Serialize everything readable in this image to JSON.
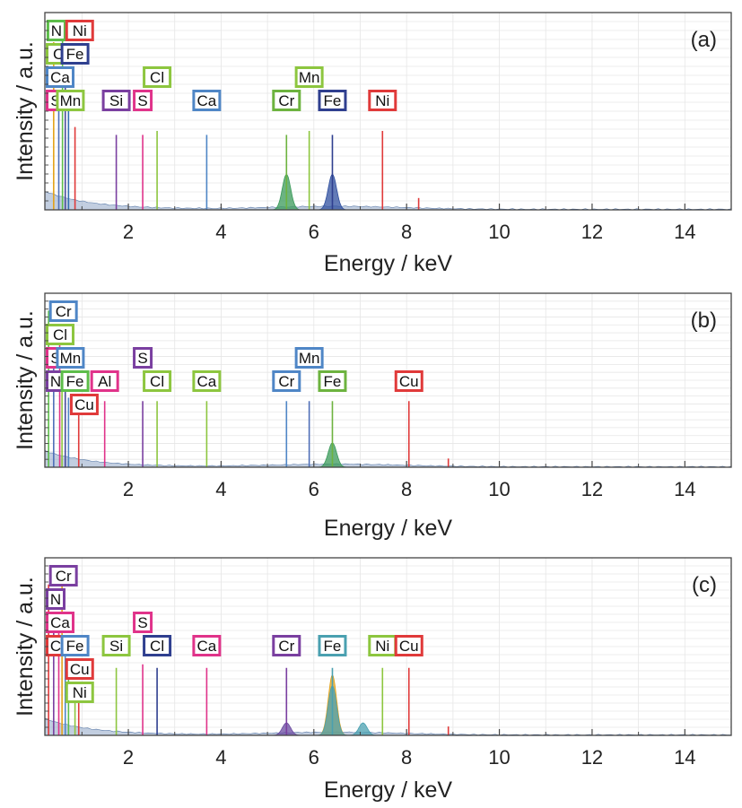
{
  "chart_data": [
    {
      "type": "line",
      "panel_label": "(a)",
      "xlabel": "Energy / keV",
      "ylabel": "Intensity / a.u.",
      "xlim": [
        0.2,
        15
      ],
      "xticks": [
        2,
        4,
        6,
        8,
        10,
        12,
        14
      ],
      "grid": true,
      "peaks": [
        {
          "x": 0.39,
          "y": 0.85,
          "color": "#e3a21a"
        },
        {
          "x": 0.5,
          "y": 0.55,
          "color": "#4f6fb8"
        },
        {
          "x": 0.58,
          "y": 0.93,
          "color": "#5dbd4a"
        },
        {
          "x": 0.64,
          "y": 0.62,
          "color": "#4a4a9a"
        },
        {
          "x": 0.71,
          "y": 0.55,
          "color": "#2f6db0"
        },
        {
          "x": 0.85,
          "y": 0.42,
          "color": "#e03a3a"
        },
        {
          "x": 1.74,
          "y": 0.38,
          "color": "#7a3fa0"
        },
        {
          "x": 2.31,
          "y": 0.38,
          "color": "#e0338a"
        },
        {
          "x": 2.62,
          "y": 0.4,
          "color": "#8dc63f"
        },
        {
          "x": 3.69,
          "y": 0.38,
          "color": "#4f86c6"
        },
        {
          "x": 5.41,
          "y": 0.38,
          "color": "#6db33f"
        },
        {
          "x": 5.9,
          "y": 0.4,
          "color": "#8dc63f"
        },
        {
          "x": 6.4,
          "y": 0.38,
          "color": "#2f3f8f"
        },
        {
          "x": 7.48,
          "y": 0.4,
          "color": "#e03a3a"
        },
        {
          "x": 8.26,
          "y": 0.06,
          "color": "#e03a3a"
        }
      ],
      "humps": [
        {
          "x": 5.41,
          "y": 0.18,
          "color": "#3a9a5a"
        },
        {
          "x": 6.4,
          "y": 0.18,
          "color": "#2f4f9f"
        }
      ],
      "element_labels": [
        {
          "text": "N",
          "x": 0.45,
          "row": 1,
          "color": "#5dbd4a"
        },
        {
          "text": "Ni",
          "x": 0.95,
          "row": 1,
          "color": "#e03a3a"
        },
        {
          "text": "Cl",
          "x": 0.35,
          "row": 2,
          "color": "#8dc63f"
        },
        {
          "text": "Fe",
          "x": 0.85,
          "row": 2,
          "color": "#2f3f8f"
        },
        {
          "text": "Ca",
          "x": 0.5,
          "row": 3,
          "color": "#4f86c6"
        },
        {
          "text": "Cl",
          "x": 2.62,
          "row": 3,
          "color": "#8dc63f"
        },
        {
          "text": "Mn",
          "x": 5.9,
          "row": 3,
          "color": "#8dc63f"
        },
        {
          "text": "S",
          "x": 0.27,
          "row": 4,
          "color": "#e0338a"
        },
        {
          "text": "Mn",
          "x": 0.75,
          "row": 4,
          "color": "#8dc63f"
        },
        {
          "text": "Si",
          "x": 1.74,
          "row": 4,
          "color": "#7a3fa0"
        },
        {
          "text": "S",
          "x": 2.31,
          "row": 4,
          "color": "#e0338a"
        },
        {
          "text": "Ca",
          "x": 3.69,
          "row": 4,
          "color": "#4f86c6"
        },
        {
          "text": "Cr",
          "x": 5.41,
          "row": 4,
          "color": "#6db33f"
        },
        {
          "text": "Fe",
          "x": 6.4,
          "row": 4,
          "color": "#2f3f8f"
        },
        {
          "text": "Ni",
          "x": 7.48,
          "row": 4,
          "color": "#e03a3a"
        }
      ]
    },
    {
      "type": "line",
      "panel_label": "(b)",
      "xlabel": "Energy / keV",
      "ylabel": "Intensity / a.u.",
      "xlim": [
        0.2,
        15
      ],
      "xticks": [
        2,
        4,
        6,
        8,
        10,
        12,
        14
      ],
      "grid": true,
      "peaks": [
        {
          "x": 0.28,
          "y": 0.9,
          "color": "#5dbd4a"
        },
        {
          "x": 0.39,
          "y": 0.6,
          "color": "#4f6fb8"
        },
        {
          "x": 0.52,
          "y": 0.75,
          "color": "#e0338a"
        },
        {
          "x": 0.57,
          "y": 0.55,
          "color": "#8dc63f"
        },
        {
          "x": 0.64,
          "y": 0.55,
          "color": "#4a4a9a"
        },
        {
          "x": 0.71,
          "y": 0.4,
          "color": "#4f86c6"
        },
        {
          "x": 0.93,
          "y": 0.33,
          "color": "#e03a3a"
        },
        {
          "x": 1.49,
          "y": 0.38,
          "color": "#e0338a"
        },
        {
          "x": 2.31,
          "y": 0.38,
          "color": "#7a3fa0"
        },
        {
          "x": 2.62,
          "y": 0.38,
          "color": "#8dc63f"
        },
        {
          "x": 3.69,
          "y": 0.38,
          "color": "#8dc63f"
        },
        {
          "x": 5.41,
          "y": 0.38,
          "color": "#4f86c6"
        },
        {
          "x": 5.9,
          "y": 0.38,
          "color": "#4f6fb8"
        },
        {
          "x": 6.4,
          "y": 0.38,
          "color": "#6db33f"
        },
        {
          "x": 8.05,
          "y": 0.38,
          "color": "#e03a3a"
        },
        {
          "x": 8.9,
          "y": 0.05,
          "color": "#e03a3a"
        }
      ],
      "humps": [
        {
          "x": 6.4,
          "y": 0.14,
          "color": "#3a9a5a"
        }
      ],
      "element_labels": [
        {
          "text": "Cr",
          "x": 0.6,
          "row": 1,
          "color": "#4f86c6"
        },
        {
          "text": "Cl",
          "x": 0.35,
          "row": 2,
          "color": "#8dc63f"
        },
        {
          "text": "S",
          "x": 0.35,
          "row": 3,
          "color": "#e0338a"
        },
        {
          "text": "Mn",
          "x": 0.75,
          "row": 3,
          "color": "#4f86c6"
        },
        {
          "text": "S",
          "x": 2.31,
          "row": 3,
          "color": "#7a3fa0"
        },
        {
          "text": "Mn",
          "x": 5.9,
          "row": 3,
          "color": "#4f86c6"
        },
        {
          "text": "N",
          "x": 0.35,
          "row": 4,
          "color": "#7a3fa0"
        },
        {
          "text": "Fe",
          "x": 0.85,
          "row": 4,
          "color": "#5dbd4a"
        },
        {
          "text": "Al",
          "x": 1.49,
          "row": 4,
          "color": "#e0338a"
        },
        {
          "text": "Cl",
          "x": 2.62,
          "row": 4,
          "color": "#8dc63f"
        },
        {
          "text": "Ca",
          "x": 3.69,
          "row": 4,
          "color": "#8dc63f"
        },
        {
          "text": "Cr",
          "x": 5.41,
          "row": 4,
          "color": "#4f86c6"
        },
        {
          "text": "Fe",
          "x": 6.4,
          "row": 4,
          "color": "#6db33f"
        },
        {
          "text": "Cu",
          "x": 8.05,
          "row": 4,
          "color": "#e03a3a"
        },
        {
          "text": "Cu",
          "x": 1.05,
          "row": 5,
          "color": "#e03a3a"
        }
      ]
    },
    {
      "type": "line",
      "panel_label": "(c)",
      "xlabel": "Energy / keV",
      "ylabel": "Intensity / a.u.",
      "xlim": [
        0.2,
        15
      ],
      "xticks": [
        2,
        4,
        6,
        8,
        10,
        12,
        14
      ],
      "grid": true,
      "peaks": [
        {
          "x": 0.28,
          "y": 0.85,
          "color": "#e03a3a"
        },
        {
          "x": 0.39,
          "y": 0.65,
          "color": "#7a3fa0"
        },
        {
          "x": 0.5,
          "y": 0.6,
          "color": "#e0338a"
        },
        {
          "x": 0.57,
          "y": 0.9,
          "color": "#e3a21a"
        },
        {
          "x": 0.64,
          "y": 0.55,
          "color": "#4f86c6"
        },
        {
          "x": 0.71,
          "y": 0.4,
          "color": "#5dbd4a"
        },
        {
          "x": 0.85,
          "y": 0.3,
          "color": "#8dc63f"
        },
        {
          "x": 0.93,
          "y": 0.3,
          "color": "#e03a3a"
        },
        {
          "x": 1.74,
          "y": 0.38,
          "color": "#8dc63f"
        },
        {
          "x": 2.31,
          "y": 0.4,
          "color": "#e0338a"
        },
        {
          "x": 2.62,
          "y": 0.38,
          "color": "#2f3f8f"
        },
        {
          "x": 3.69,
          "y": 0.38,
          "color": "#e0338a"
        },
        {
          "x": 5.41,
          "y": 0.38,
          "color": "#7a3fa0"
        },
        {
          "x": 6.4,
          "y": 0.38,
          "color": "#4aa0b0"
        },
        {
          "x": 7.48,
          "y": 0.38,
          "color": "#8dc63f"
        },
        {
          "x": 8.05,
          "y": 0.38,
          "color": "#e03a3a"
        },
        {
          "x": 8.9,
          "y": 0.05,
          "color": "#e03a3a"
        }
      ],
      "humps": [
        {
          "x": 5.41,
          "y": 0.07,
          "color": "#6a4aa0"
        },
        {
          "x": 6.4,
          "y": 0.34,
          "color": "#e3a21a"
        },
        {
          "x": 6.4,
          "y": 0.28,
          "color": "#4aa0b0"
        },
        {
          "x": 7.06,
          "y": 0.07,
          "color": "#4aa0b0"
        }
      ],
      "element_labels": [
        {
          "text": "Cr",
          "x": 0.6,
          "row": 1,
          "color": "#7a3fa0"
        },
        {
          "text": "N",
          "x": 0.3,
          "row": 2,
          "color": "#7a3fa0"
        },
        {
          "text": "Ca",
          "x": 0.4,
          "row": 3,
          "color": "#e0338a"
        },
        {
          "text": "S",
          "x": 2.31,
          "row": 3,
          "color": "#e0338a"
        },
        {
          "text": "C",
          "x": 0.3,
          "row": 4,
          "color": "#e03a3a"
        },
        {
          "text": "Fe",
          "x": 0.85,
          "row": 4,
          "color": "#4f86c6"
        },
        {
          "text": "Si",
          "x": 1.74,
          "row": 4,
          "color": "#8dc63f"
        },
        {
          "text": "Cl",
          "x": 2.62,
          "row": 4,
          "color": "#2f3f8f"
        },
        {
          "text": "Ca",
          "x": 3.69,
          "row": 4,
          "color": "#e0338a"
        },
        {
          "text": "Cr",
          "x": 5.41,
          "row": 4,
          "color": "#7a3fa0"
        },
        {
          "text": "Fe",
          "x": 6.4,
          "row": 4,
          "color": "#4aa0b0"
        },
        {
          "text": "Ni",
          "x": 7.48,
          "row": 4,
          "color": "#8dc63f"
        },
        {
          "text": "Cu",
          "x": 8.05,
          "row": 4,
          "color": "#e03a3a"
        },
        {
          "text": "Cu",
          "x": 0.95,
          "row": 5,
          "color": "#e03a3a"
        },
        {
          "text": "Ni",
          "x": 0.95,
          "row": 6,
          "color": "#8dc63f"
        }
      ]
    }
  ]
}
